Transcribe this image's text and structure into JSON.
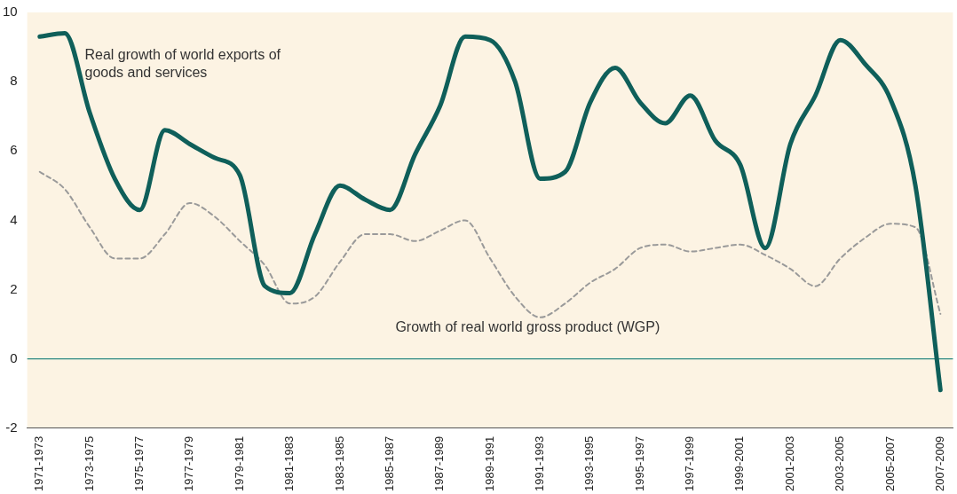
{
  "chart_data": {
    "type": "line",
    "categories": [
      "1971-1973",
      null,
      "1973-1975",
      null,
      "1975-1977",
      null,
      "1977-1979",
      null,
      "1979-1981",
      null,
      "1981-1983",
      null,
      "1983-1985",
      null,
      "1985-1987",
      null,
      "1987-1989",
      null,
      "1989-1991",
      null,
      "1991-1993",
      null,
      "1993-1995",
      null,
      "1995-1997",
      null,
      "1997-1999",
      null,
      "1999-2001",
      null,
      "2001-2003",
      null,
      "2003-2005",
      null,
      "2005-2007",
      null,
      "2007-2009"
    ],
    "series": [
      {
        "name": "Real growth of world exports of goods and services",
        "color": "#0f5f5a",
        "line_style": "solid",
        "values": [
          9.3,
          9.4,
          7.1,
          5.2,
          4.3,
          6.6,
          6.2,
          5.8,
          5.3,
          2.1,
          1.9,
          3.6,
          5.0,
          4.6,
          4.3,
          5.9,
          7.3,
          9.3,
          9.2,
          8.0,
          5.2,
          5.4,
          7.4,
          8.4,
          7.4,
          6.8,
          7.6,
          6.3,
          5.6,
          3.2,
          6.2,
          7.6,
          9.2,
          8.5,
          7.5,
          5.0,
          -0.9
        ]
      },
      {
        "name": "Growth of real world gross product (WGP)",
        "color": "#9a9a9a",
        "line_style": "dashed",
        "values": [
          5.4,
          4.9,
          3.8,
          2.9,
          2.9,
          3.6,
          4.5,
          4.1,
          3.4,
          2.7,
          1.6,
          1.8,
          2.8,
          3.6,
          3.6,
          3.4,
          3.7,
          4.0,
          2.9,
          1.8,
          1.2,
          1.6,
          2.2,
          2.6,
          3.2,
          3.3,
          3.1,
          3.2,
          3.3,
          3.0,
          2.6,
          2.1,
          2.9,
          3.5,
          3.9,
          3.8,
          1.3
        ]
      }
    ],
    "ylim": [
      -2,
      10
    ],
    "yticks": [
      -2,
      0,
      2,
      4,
      6,
      8,
      10
    ],
    "grid": false,
    "legend": false,
    "marker": "none",
    "ref_lines": [
      {
        "axis": "y",
        "value": 0,
        "color": "#2e8a84"
      }
    ]
  }
}
